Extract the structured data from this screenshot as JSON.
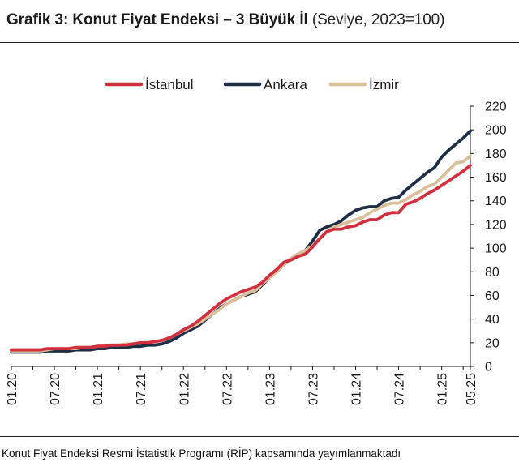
{
  "title": {
    "bold": "Grafik 3: Konut Fiyat Endeksi – 3 Büyük İl",
    "subtitle": "(Seviye, 2023=100)"
  },
  "footnote": "Konut Fiyat Endeksi Resmi İstatistik Programı (RİP) kapsamında yayımlanmaktadı",
  "chart_data": {
    "type": "line",
    "x": [
      "01.20",
      "02.20",
      "03.20",
      "04.20",
      "05.20",
      "06.20",
      "07.20",
      "08.20",
      "09.20",
      "10.20",
      "11.20",
      "12.20",
      "01.21",
      "02.21",
      "03.21",
      "04.21",
      "05.21",
      "06.21",
      "07.21",
      "08.21",
      "09.21",
      "10.21",
      "11.21",
      "12.21",
      "01.22",
      "02.22",
      "03.22",
      "04.22",
      "05.22",
      "06.22",
      "07.22",
      "08.22",
      "09.22",
      "10.22",
      "11.22",
      "12.22",
      "01.23",
      "02.23",
      "03.23",
      "04.23",
      "05.23",
      "06.23",
      "07.23",
      "08.23",
      "09.23",
      "10.23",
      "11.23",
      "12.23",
      "01.24",
      "02.24",
      "03.24",
      "04.24",
      "05.24",
      "06.24",
      "07.24",
      "08.24",
      "09.24",
      "10.24",
      "11.24",
      "12.24",
      "01.25",
      "02.25",
      "03.25",
      "04.25",
      "05.25"
    ],
    "x_tick_labels": [
      "01.20",
      "07.20",
      "01.21",
      "07.21",
      "01.22",
      "07.22",
      "01.23",
      "07.23",
      "01.24",
      "07.24",
      "01.25",
      "05.25"
    ],
    "x_tick_positions": [
      0,
      6,
      12,
      18,
      24,
      30,
      36,
      42,
      48,
      54,
      60,
      64
    ],
    "ylim": [
      0,
      220
    ],
    "y_ticks": [
      0,
      20,
      40,
      60,
      80,
      100,
      120,
      140,
      160,
      180,
      200,
      220
    ],
    "legend_position": "top",
    "grid": false,
    "series": [
      {
        "name": "İstanbul",
        "color": "#d1303f",
        "values": [
          14,
          14,
          14,
          14,
          14,
          15,
          15,
          15,
          15,
          16,
          16,
          16,
          17,
          17,
          18,
          18,
          18,
          19,
          20,
          20,
          21,
          22,
          24,
          27,
          31,
          34,
          38,
          43,
          48,
          53,
          57,
          60,
          63,
          65,
          67,
          71,
          77,
          82,
          88,
          90,
          93,
          95,
          101,
          108,
          114,
          116,
          116,
          118,
          119,
          122,
          124,
          124,
          128,
          130,
          130,
          137,
          139,
          142,
          146,
          149,
          153,
          157,
          161,
          165,
          170
        ]
      },
      {
        "name": "Ankara",
        "color": "#1d2e45",
        "values": [
          12,
          12,
          12,
          12,
          12,
          13,
          13,
          13,
          13,
          14,
          14,
          14,
          15,
          15,
          16,
          16,
          16,
          17,
          17,
          18,
          18,
          19,
          21,
          24,
          28,
          31,
          34,
          39,
          44,
          49,
          53,
          56,
          59,
          61,
          63,
          69,
          75,
          81,
          86,
          91,
          95,
          98,
          106,
          115,
          118,
          120,
          123,
          128,
          132,
          134,
          135,
          135,
          140,
          142,
          143,
          149,
          154,
          159,
          164,
          168,
          177,
          183,
          188,
          193,
          199
        ]
      },
      {
        "name": "İzmir",
        "color": "#d9c09a",
        "values": [
          13,
          13,
          13,
          13,
          13,
          14,
          15,
          15,
          15,
          15,
          16,
          16,
          17,
          18,
          18,
          18,
          19,
          19,
          20,
          20,
          21,
          22,
          24,
          27,
          30,
          33,
          36,
          40,
          44,
          48,
          53,
          56,
          59,
          62,
          64,
          70,
          75,
          80,
          86,
          91,
          95,
          98,
          102,
          108,
          114,
          118,
          120,
          122,
          124,
          126,
          130,
          133,
          136,
          138,
          138,
          141,
          145,
          148,
          152,
          154,
          160,
          166,
          172,
          173,
          178
        ]
      }
    ]
  }
}
